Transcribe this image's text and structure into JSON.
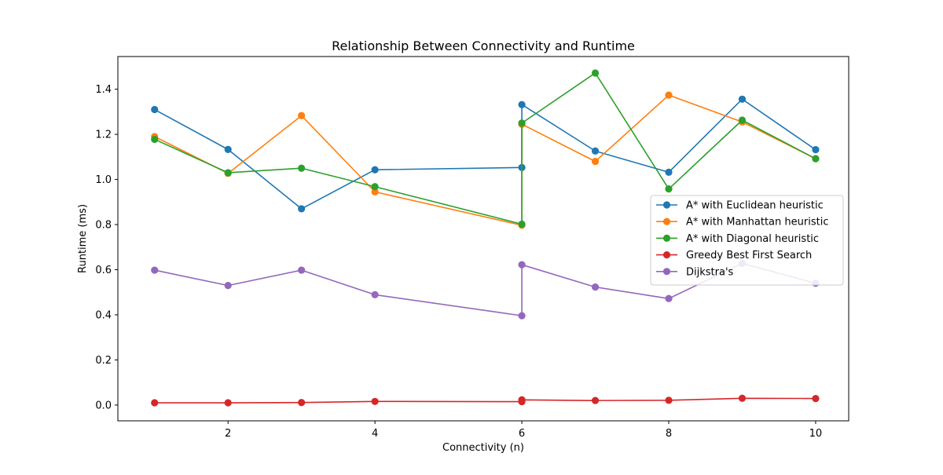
{
  "chart_data": {
    "type": "line",
    "title": "Relationship Between Connectivity and Runtime",
    "xlabel": "Connectivity (n)",
    "ylabel": "Runtime (ms)",
    "xlim": [
      0.5,
      10.45
    ],
    "ylim": [
      -0.07,
      1.545
    ],
    "xticks": [
      2,
      4,
      6,
      8,
      10
    ],
    "yticks": [
      0.0,
      0.2,
      0.4,
      0.6,
      0.8,
      1.0,
      1.2,
      1.4
    ],
    "grid": false,
    "legend_position": "center-right",
    "x": [
      1,
      2,
      3,
      4,
      6,
      6,
      7,
      8,
      9,
      10
    ],
    "series": [
      {
        "name": "A* with Euclidean heuristic",
        "color": "#1f77b4",
        "values": [
          1.31,
          1.133,
          0.87,
          1.043,
          1.053,
          1.332,
          1.126,
          1.032,
          1.356,
          1.132
        ]
      },
      {
        "name": "A* with Manhattan heuristic",
        "color": "#ff7f0e",
        "values": [
          1.19,
          1.027,
          1.283,
          0.945,
          0.797,
          1.245,
          1.08,
          1.374,
          1.255,
          1.092
        ]
      },
      {
        "name": "A* with Diagonal heuristic",
        "color": "#2ca02c",
        "values": [
          1.178,
          1.03,
          1.05,
          0.968,
          0.802,
          1.25,
          1.472,
          0.958,
          1.263,
          1.092
        ]
      },
      {
        "name": "Greedy Best First Search",
        "color": "#d62728",
        "values": [
          0.01,
          0.01,
          0.011,
          0.016,
          0.015,
          0.023,
          0.02,
          0.021,
          0.03,
          0.029
        ]
      },
      {
        "name": "Dijkstra's",
        "color": "#9467bd",
        "values": [
          0.598,
          0.53,
          0.598,
          0.489,
          0.396,
          0.622,
          0.523,
          0.472,
          0.628,
          0.54
        ]
      }
    ]
  }
}
